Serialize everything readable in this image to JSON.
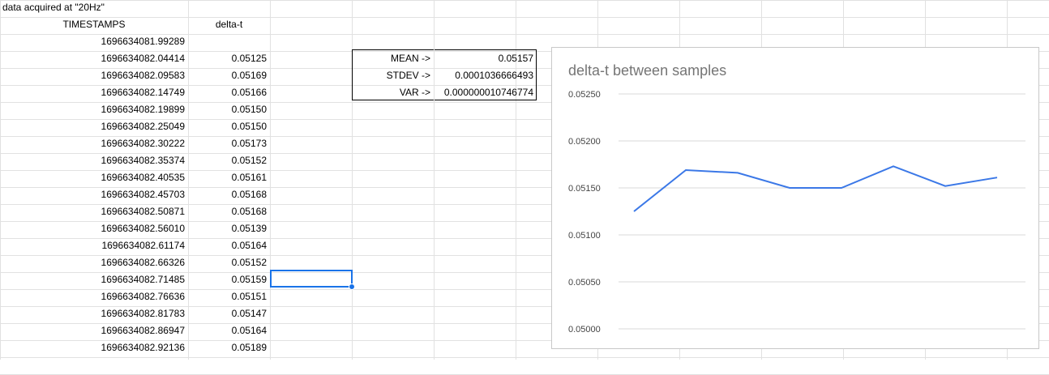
{
  "sheet": {
    "note": "data acquired at \"20Hz\"",
    "headers": {
      "timestamps": "TIMESTAMPS",
      "delta": "delta-t"
    },
    "rows": [
      {
        "ts": "1696634081.99289",
        "dt": ""
      },
      {
        "ts": "1696634082.04414",
        "dt": "0.05125"
      },
      {
        "ts": "1696634082.09583",
        "dt": "0.05169"
      },
      {
        "ts": "1696634082.14749",
        "dt": "0.05166"
      },
      {
        "ts": "1696634082.19899",
        "dt": "0.05150"
      },
      {
        "ts": "1696634082.25049",
        "dt": "0.05150"
      },
      {
        "ts": "1696634082.30222",
        "dt": "0.05173"
      },
      {
        "ts": "1696634082.35374",
        "dt": "0.05152"
      },
      {
        "ts": "1696634082.40535",
        "dt": "0.05161"
      },
      {
        "ts": "1696634082.45703",
        "dt": "0.05168"
      },
      {
        "ts": "1696634082.50871",
        "dt": "0.05168"
      },
      {
        "ts": "1696634082.56010",
        "dt": "0.05139"
      },
      {
        "ts": "1696634082.61174",
        "dt": "0.05164"
      },
      {
        "ts": "1696634082.66326",
        "dt": "0.05152"
      },
      {
        "ts": "1696634082.71485",
        "dt": "0.05159"
      },
      {
        "ts": "1696634082.76636",
        "dt": "0.05151"
      },
      {
        "ts": "1696634082.81783",
        "dt": "0.05147"
      },
      {
        "ts": "1696634082.86947",
        "dt": "0.05164"
      },
      {
        "ts": "1696634082.92136",
        "dt": "0.05189"
      }
    ],
    "stats": [
      {
        "label": "MEAN ->",
        "value": "0.05157"
      },
      {
        "label": "STDEV ->",
        "value": "0.0001036666493"
      },
      {
        "label": "VAR ->",
        "value": "0.000000010746774"
      }
    ]
  },
  "colors": {
    "line": "#3b78e7",
    "grid": "#d9d9d9",
    "selection": "#1a73e8",
    "title": "#757575"
  },
  "chart_data": {
    "type": "line",
    "title": "delta-t between samples",
    "xlabel": "",
    "ylabel": "",
    "ylim": [
      0.05,
      0.0525
    ],
    "yticks": [
      "0.05250",
      "0.05200",
      "0.05150",
      "0.05100",
      "0.05050",
      "0.05000"
    ],
    "ytick_values": [
      0.0525,
      0.052,
      0.0515,
      0.051,
      0.0505,
      0.05
    ],
    "grid": true,
    "legend": "none",
    "series": [
      {
        "values": [
          0.05125,
          0.05169,
          0.05166,
          0.0515,
          0.0515,
          0.05173,
          0.05152,
          0.05161
        ]
      }
    ]
  }
}
